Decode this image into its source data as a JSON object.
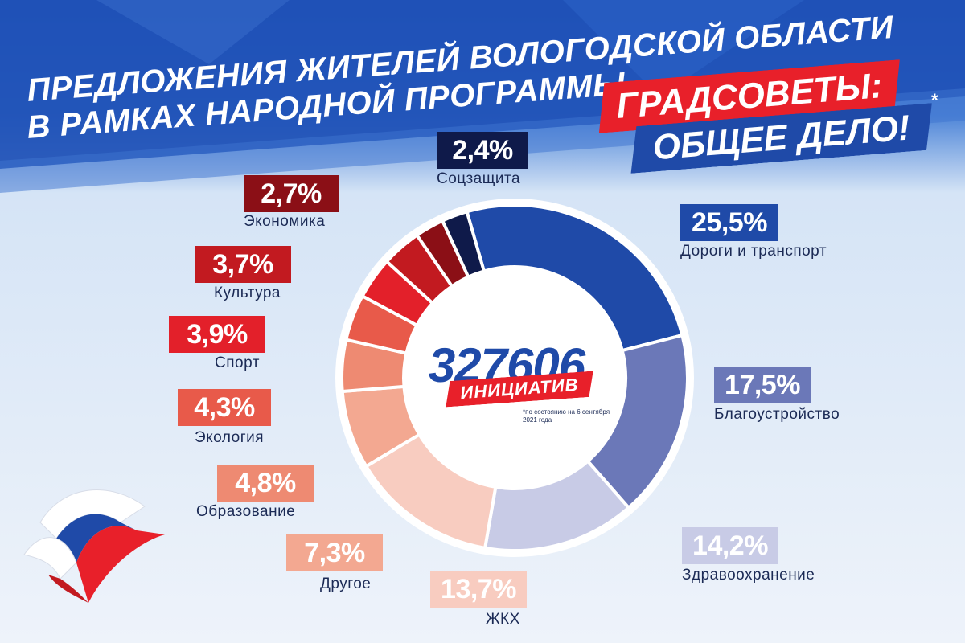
{
  "header": {
    "title_line1": "ПРЕДЛОЖЕНИЯ ЖИТЕЛЕЙ ВОЛОГОДСКОЙ ОБЛАСТИ",
    "title_line2": "В РАМКАХ НАРОДНОЙ ПРОГРАММЫ",
    "slogan_line1": "ГРАДСОВЕТЫ:",
    "slogan_line2": "ОБЩЕЕ ДЕЛО!",
    "asterisk": "*"
  },
  "center": {
    "number": "327606",
    "ribbon": "ИНИЦИАТИВ",
    "note": "*по состоянию на 6 сентября 2021 года"
  },
  "chart_data": {
    "type": "pie",
    "donut": true,
    "categories": [
      "Дороги и транспорт",
      "Благоустройство",
      "Здравоохранение",
      "ЖКХ",
      "Другое",
      "Образование",
      "Экология",
      "Спорт",
      "Культура",
      "Экономика",
      "Соцзащита"
    ],
    "values": [
      25.5,
      17.5,
      14.2,
      13.7,
      7.3,
      4.8,
      4.3,
      3.9,
      3.7,
      2.7,
      2.4
    ],
    "labels": [
      "25,5%",
      "17,5%",
      "14,2%",
      "13,7%",
      "7,3%",
      "4,8%",
      "4,3%",
      "3,9%",
      "3,7%",
      "2,7%",
      "2,4%"
    ],
    "colors": [
      "#1f4aa8",
      "#6b78b8",
      "#c8cbe6",
      "#f8ccc0",
      "#f3a891",
      "#ee8a72",
      "#e85a4a",
      "#e3202a",
      "#c21a20",
      "#8b0f16",
      "#0f1a4a"
    ]
  },
  "colors": {
    "background_top": "#1f4aa8",
    "background_bottom": "#e6eef8",
    "accent_red": "#e8202a",
    "accent_blue": "#1f4aa8"
  }
}
